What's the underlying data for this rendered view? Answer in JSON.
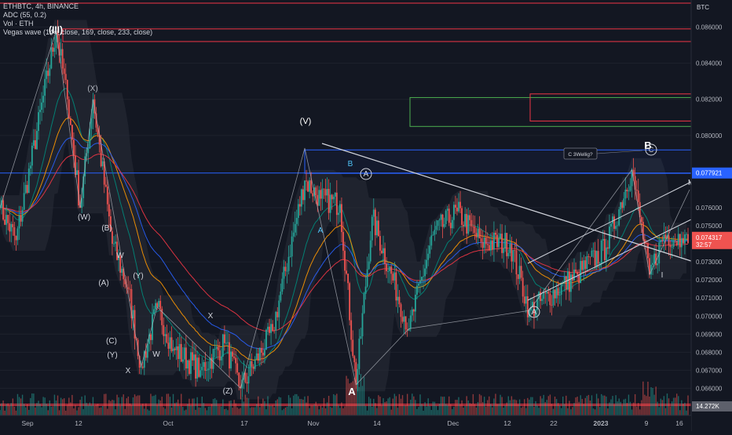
{
  "header": {
    "symbol_line": "ETHBTC, 4h, BINANCE",
    "indicators": [
      "ADC (55, 0.2)",
      "Vol · ETH",
      "Vegas wave (144, close, 169, close, 233, close)"
    ]
  },
  "colors": {
    "background": "#131722",
    "up": "#26a69a",
    "down": "#ef5350",
    "wave_line": "#b2b5be",
    "zone_red": "#f23645",
    "zone_green": "#4caf50",
    "zone_blue": "#2962ff",
    "channel": "#2a2e39",
    "ma_blue": "#2962ff",
    "ma_orange": "#ff9800",
    "ma_red": "#f23645",
    "ma_teal": "#00897b"
  },
  "right_axis": {
    "currency": "BTC",
    "ticks": [
      "0.086000",
      "0.084000",
      "0.082000",
      "0.080000",
      "0.076000",
      "0.075000",
      "0.073000",
      "0.072000",
      "0.071000",
      "0.070000",
      "0.069000",
      "0.068000",
      "0.067000",
      "0.066000",
      "0.065100"
    ],
    "blue_level_label": "0.077921",
    "price_label": "0.074317",
    "countdown": "32:57",
    "volume_label": "14.272K"
  },
  "bottom_axis": {
    "labels": [
      "Sep",
      "12",
      "Oct",
      "17",
      "Nov",
      "14",
      "Dec",
      "12",
      "22",
      "2023",
      "9",
      "16"
    ]
  },
  "wave_labels": [
    "(III)",
    "(X)",
    "(W)",
    "(B)",
    "W",
    "(A)",
    "(Y)",
    "(C)",
    "(Y)",
    "X",
    "W",
    "X",
    "(Z)",
    "(V)",
    "B",
    "A",
    "A",
    "A",
    "A",
    "B",
    "C",
    "I",
    "III",
    "V"
  ],
  "annotation": {
    "text": "C 3Wellig?"
  },
  "chart_data": {
    "type": "candlestick",
    "symbol": "ETHBTC",
    "timeframe": "4h",
    "exchange": "BINANCE",
    "y_range": [
      0.0645,
      0.0875
    ],
    "x_labels": [
      "Sep",
      "12",
      "Oct",
      "17",
      "Nov",
      "14",
      "Dec",
      "12",
      "22",
      "2023",
      "9",
      "16"
    ],
    "pivots": [
      {
        "i": 0,
        "v": 0.076
      },
      {
        "i": 10,
        "v": 0.0742
      },
      {
        "i": 35,
        "v": 0.0858
      },
      {
        "i": 42,
        "v": 0.082
      },
      {
        "i": 50,
        "v": 0.076
      },
      {
        "i": 58,
        "v": 0.082
      },
      {
        "i": 70,
        "v": 0.074
      },
      {
        "i": 80,
        "v": 0.0715
      },
      {
        "i": 88,
        "v": 0.0672
      },
      {
        "i": 98,
        "v": 0.0705
      },
      {
        "i": 108,
        "v": 0.0682
      },
      {
        "i": 125,
        "v": 0.067
      },
      {
        "i": 140,
        "v": 0.0685
      },
      {
        "i": 150,
        "v": 0.066
      },
      {
        "i": 170,
        "v": 0.0692
      },
      {
        "i": 190,
        "v": 0.0775
      },
      {
        "i": 200,
        "v": 0.0765
      },
      {
        "i": 212,
        "v": 0.0762
      },
      {
        "i": 222,
        "v": 0.0662
      },
      {
        "i": 232,
        "v": 0.0755
      },
      {
        "i": 255,
        "v": 0.0693
      },
      {
        "i": 270,
        "v": 0.0745
      },
      {
        "i": 285,
        "v": 0.0758
      },
      {
        "i": 300,
        "v": 0.0741
      },
      {
        "i": 318,
        "v": 0.074
      },
      {
        "i": 330,
        "v": 0.0703
      },
      {
        "i": 360,
        "v": 0.0723
      },
      {
        "i": 378,
        "v": 0.0738
      },
      {
        "i": 394,
        "v": 0.0781
      },
      {
        "i": 405,
        "v": 0.0723
      },
      {
        "i": 414,
        "v": 0.0745
      },
      {
        "i": 425,
        "v": 0.07432
      }
    ],
    "zones": [
      {
        "name": "red-top",
        "top": 0.0859,
        "bottom": 0.0852
      },
      {
        "name": "green",
        "top": 0.0821,
        "bottom": 0.0805
      },
      {
        "name": "red-right",
        "top": 0.0823,
        "bottom": 0.0808
      },
      {
        "name": "blue",
        "top": 0.0792,
        "bottom": 0.0779
      },
      {
        "name": "red-bottom",
        "top": 0.06512,
        "bottom": 0.06505
      }
    ],
    "current_price": 0.074317,
    "last_volume": "14.272K"
  }
}
